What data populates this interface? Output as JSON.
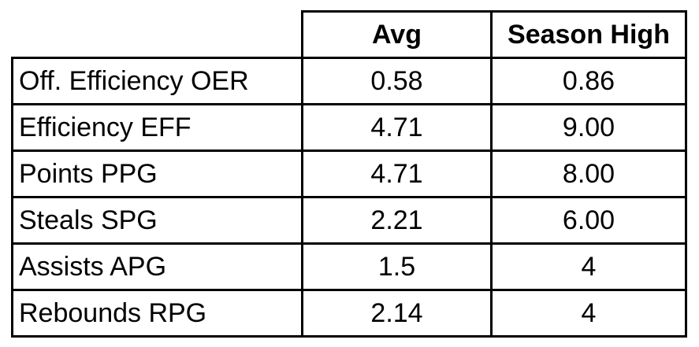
{
  "table": {
    "columns": [
      "",
      "Avg",
      "Season High"
    ],
    "rows": [
      {
        "label": "Off. Efficiency OER",
        "avg": "0.58",
        "high": "0.86"
      },
      {
        "label": "Efficiency EFF",
        "avg": "4.71",
        "high": "9.00"
      },
      {
        "label": "Points PPG",
        "avg": "4.71",
        "high": "8.00"
      },
      {
        "label": "Steals SPG",
        "avg": "2.21",
        "high": "6.00"
      },
      {
        "label": "Assists APG",
        "avg": "1.5",
        "high": "4"
      },
      {
        "label": "Rebounds RPG",
        "avg": "2.14",
        "high": "4"
      }
    ]
  }
}
